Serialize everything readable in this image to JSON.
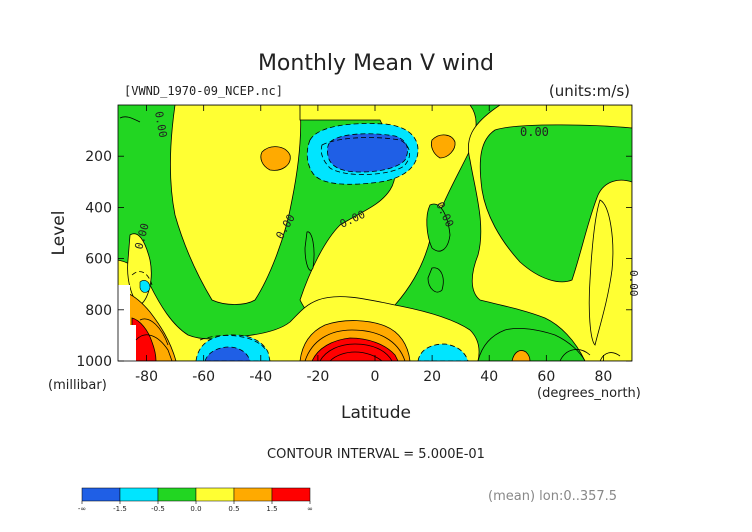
{
  "chart_data": {
    "type": "heatmap",
    "title": "Monthly Mean V wind",
    "file_label": "[VWND_1970-09_NCEP.nc]",
    "units_label": "(units:m/s)",
    "xlabel": "Latitude",
    "x_units": "(degrees_north)",
    "ylabel": "Level",
    "y_units": "(millibar)",
    "xlim": [
      -90,
      90
    ],
    "ylim": [
      1000,
      0
    ],
    "x_ticks": [
      {
        "value": -80,
        "label": "-80"
      },
      {
        "value": -60,
        "label": "-60"
      },
      {
        "value": -40,
        "label": "-40"
      },
      {
        "value": -20,
        "label": "-20"
      },
      {
        "value": 0,
        "label": "0"
      },
      {
        "value": 20,
        "label": "20"
      },
      {
        "value": 40,
        "label": "40"
      },
      {
        "value": 60,
        "label": "60"
      },
      {
        "value": 80,
        "label": "80"
      }
    ],
    "y_ticks": [
      {
        "value": 200,
        "label": "200"
      },
      {
        "value": 400,
        "label": "400"
      },
      {
        "value": 600,
        "label": "600"
      },
      {
        "value": 800,
        "label": "800"
      },
      {
        "value": 1000,
        "label": "1000"
      }
    ],
    "contour_interval": "CONTOUR INTERVAL = 5.000E-01",
    "footer_note": "(mean) lon:0..357.5",
    "zero_line_labels": [
      "0.00",
      "0.00",
      "0.00",
      "0.00",
      "0.00",
      "0.00",
      "0.00",
      "0.00"
    ],
    "colorbar": {
      "colors": [
        "#1f5fe6",
        "#00e5ff",
        "#22d622",
        "#ffff33",
        "#ffaa00",
        "#ff0000"
      ],
      "tick_labels": [
        "-∞",
        "-1.5",
        "-0.5",
        "0.0",
        "0.5",
        "1.5",
        "∞"
      ]
    },
    "regions": [
      {
        "level": "negative-moderate",
        "color": "#00e5ff",
        "center": [
          -10,
          180
        ],
        "extent": "lat -27 to 5, 110-270 mb"
      },
      {
        "level": "negative-strong",
        "color": "#1f5fe6",
        "center": [
          -10,
          180
        ],
        "extent": "lat -22 to 0, 130-230 mb"
      },
      {
        "level": "positive-strong",
        "color": "#ff0000",
        "center": [
          -10,
          970
        ],
        "extent": "lat -20 to 0, 900-1000 mb"
      },
      {
        "level": "positive-strong",
        "color": "#ff0000",
        "center": [
          -86,
          970
        ],
        "extent": "lat -88 to -82, 880-1000 mb"
      },
      {
        "level": "negative-strong",
        "color": "#1f5fe6",
        "center": [
          -53,
          980
        ],
        "extent": "lat -60 to -47, 950-1000 mb"
      }
    ]
  }
}
